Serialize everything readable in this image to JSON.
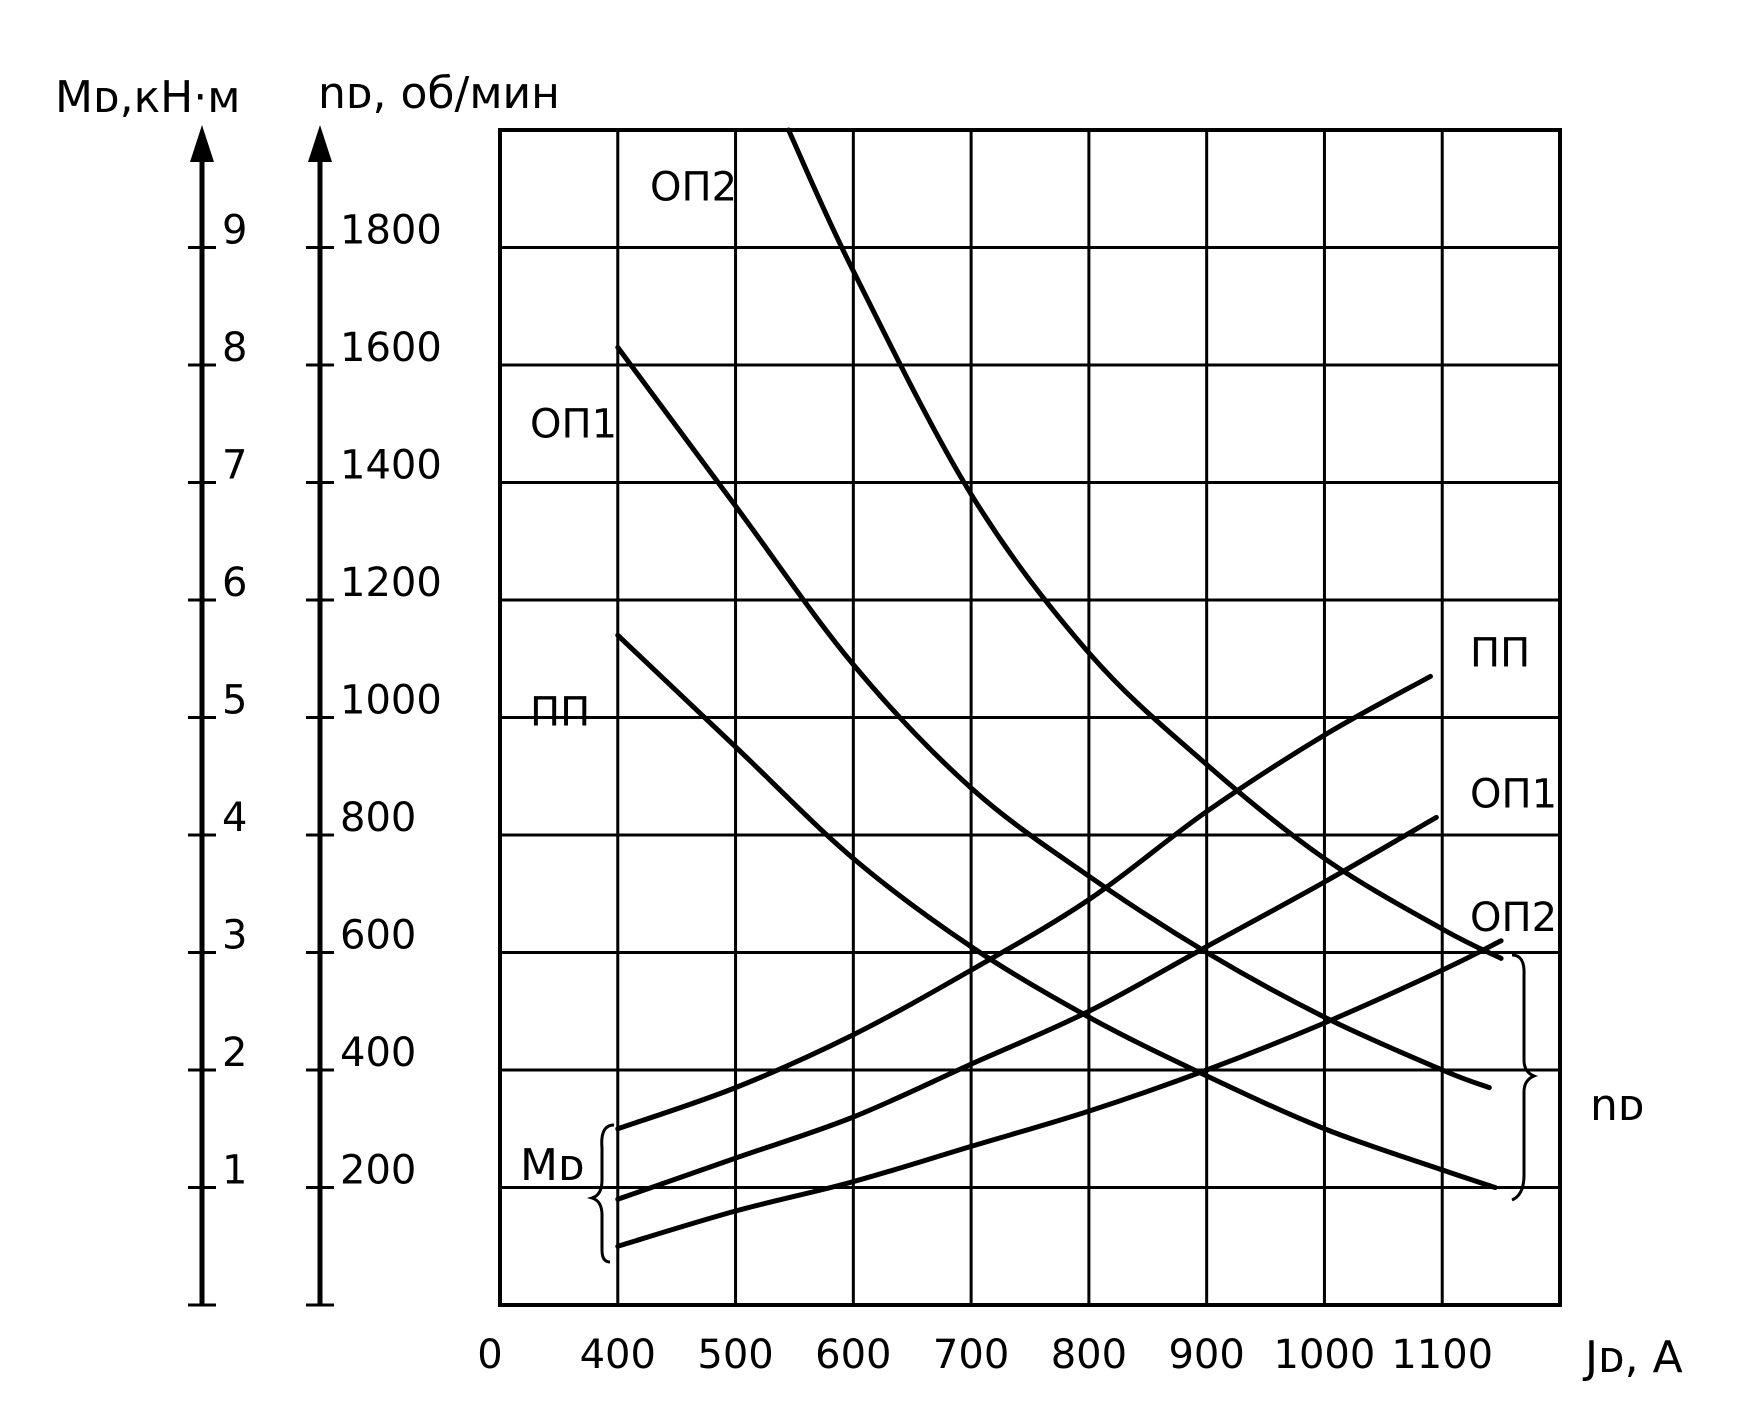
{
  "chart_data": {
    "type": "line",
    "title": "",
    "xlabel": "Jᴅ, A",
    "x_ticks": [
      "0",
      "400",
      "500",
      "600",
      "700",
      "800",
      "900",
      "1000",
      "1100"
    ],
    "xlim": [
      300,
      1200
    ],
    "y_axes": [
      {
        "label": "Mᴅ,кН·м",
        "ticks": [
          "1",
          "2",
          "3",
          "4",
          "5",
          "6",
          "7",
          "8",
          "9"
        ],
        "ylim": [
          0,
          10
        ]
      },
      {
        "label": "nᴅ, об/мин",
        "ticks": [
          "200",
          "400",
          "600",
          "800",
          "1000",
          "1200",
          "1400",
          "1600",
          "1800"
        ],
        "ylim": [
          0,
          2000
        ]
      }
    ],
    "group_labels": {
      "torque": "Mᴅ",
      "speed": "nᴅ"
    },
    "series": [
      {
        "name": "ОП2",
        "group": "speed",
        "axis": "nᴅ",
        "x": [
          545,
          600,
          700,
          800,
          900,
          1000,
          1100,
          1150
        ],
        "y": [
          2000,
          1760,
          1380,
          1110,
          920,
          760,
          640,
          590
        ]
      },
      {
        "name": "ОП1",
        "group": "speed",
        "axis": "nᴅ",
        "x": [
          400,
          500,
          600,
          700,
          800,
          900,
          1000,
          1100,
          1140
        ],
        "y": [
          1630,
          1360,
          1090,
          880,
          730,
          600,
          490,
          400,
          370
        ]
      },
      {
        "name": "ПП",
        "group": "speed",
        "axis": "nᴅ",
        "x": [
          400,
          500,
          600,
          700,
          800,
          900,
          1000,
          1100,
          1145
        ],
        "y": [
          1140,
          950,
          760,
          610,
          490,
          390,
          300,
          230,
          200
        ]
      },
      {
        "name": "ПП",
        "group": "torque",
        "axis": "Mᴅ",
        "x": [
          400,
          500,
          600,
          700,
          800,
          900,
          1000,
          1090
        ],
        "y": [
          1.5,
          1.85,
          2.3,
          2.85,
          3.45,
          4.2,
          4.85,
          5.35
        ]
      },
      {
        "name": "ОП1",
        "group": "torque",
        "axis": "Mᴅ",
        "x": [
          400,
          500,
          600,
          700,
          800,
          900,
          1000,
          1095
        ],
        "y": [
          0.9,
          1.25,
          1.6,
          2.05,
          2.5,
          3.05,
          3.6,
          4.15
        ]
      },
      {
        "name": "ОП2",
        "group": "torque",
        "axis": "Mᴅ",
        "x": [
          400,
          500,
          600,
          700,
          800,
          900,
          1000,
          1100,
          1150
        ],
        "y": [
          0.5,
          0.8,
          1.05,
          1.35,
          1.65,
          2.0,
          2.4,
          2.85,
          3.1
        ]
      }
    ]
  }
}
